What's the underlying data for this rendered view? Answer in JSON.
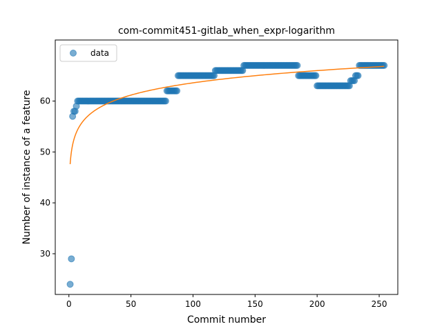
{
  "chart_data": {
    "type": "scatter",
    "title": "com-commit451-gitlab_when_expr-logarithm",
    "xlabel": "Commit number",
    "ylabel": "Number of instance of a feature",
    "xlim": [
      -11,
      265
    ],
    "ylim": [
      22,
      72
    ],
    "xticks": [
      0,
      50,
      100,
      150,
      200,
      250
    ],
    "yticks": [
      30,
      40,
      50,
      60
    ],
    "grid": false,
    "legend": {
      "position": "top-left",
      "entries": [
        "data"
      ]
    },
    "colors": {
      "points": "#1f77b4",
      "fit": "#ff7f0e"
    },
    "series": [
      {
        "name": "data",
        "kind": "points",
        "segments": [
          [
            1,
            1,
            24
          ],
          [
            2,
            2,
            29
          ],
          [
            3,
            3,
            57
          ],
          [
            4,
            5,
            58
          ],
          [
            6,
            6,
            59
          ],
          [
            7,
            78,
            60
          ],
          [
            79,
            87,
            62
          ],
          [
            88,
            117,
            65
          ],
          [
            118,
            140,
            66
          ],
          [
            141,
            184,
            67
          ],
          [
            185,
            199,
            65
          ],
          [
            200,
            226,
            63
          ],
          [
            227,
            230,
            64
          ],
          [
            231,
            233,
            65
          ],
          [
            234,
            254,
            67
          ]
        ]
      },
      {
        "kind": "fit",
        "model": "logarithmic",
        "x_range": [
          1,
          254
        ],
        "a": 47.6,
        "b": 3.47
      }
    ]
  }
}
